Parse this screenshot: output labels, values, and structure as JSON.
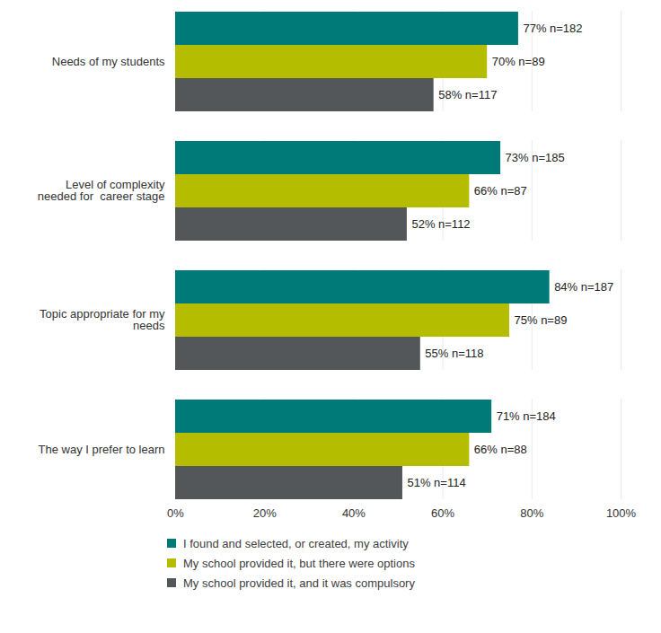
{
  "chart_data": {
    "type": "bar",
    "orientation": "horizontal",
    "categories": [
      "Needs of my students",
      "Level of complexity needed for  career stage",
      "Topic appropriate for my needs",
      "The way I prefer to learn"
    ],
    "series": [
      {
        "name": "I found and selected, or created, my activity",
        "color": "#007a78",
        "values": [
          77,
          73,
          84,
          71
        ],
        "value_labels": [
          "77% n=182",
          "73% n=185",
          "84% n=187",
          "71% n=184"
        ]
      },
      {
        "name": "My school provided it, but there were options",
        "color": "#b5bd00",
        "values": [
          70,
          66,
          75,
          66
        ],
        "value_labels": [
          "70% n=89",
          "66% n=87",
          "75% n=89",
          "66% n=88"
        ]
      },
      {
        "name": "My school provided it, and it was compulsory",
        "color": "#54575a",
        "values": [
          58,
          52,
          55,
          51
        ],
        "value_labels": [
          "58% n=117",
          "52% n=112",
          "55% n=118",
          "51% n=114"
        ]
      }
    ],
    "xlim": [
      0,
      100
    ],
    "xticks": [
      {
        "value": 0,
        "label": "0%"
      },
      {
        "value": 20,
        "label": "20%"
      },
      {
        "value": 40,
        "label": "40%"
      },
      {
        "value": 60,
        "label": "60%"
      },
      {
        "value": 80,
        "label": "80%"
      },
      {
        "value": 100,
        "label": "100%"
      }
    ],
    "grid": true,
    "legend": "bottom",
    "data_labels": true
  }
}
